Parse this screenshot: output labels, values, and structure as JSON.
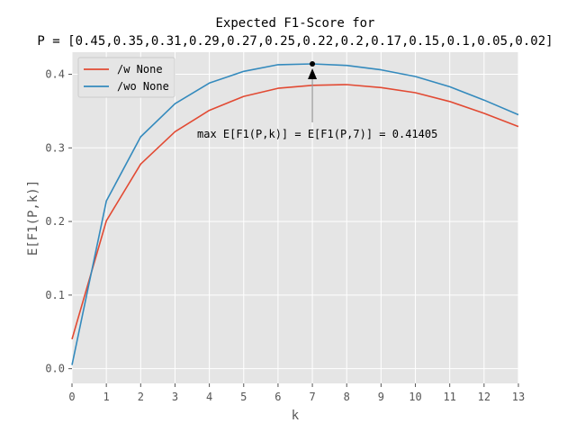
{
  "chart_data": {
    "type": "line",
    "title_lines": [
      "Expected F1-Score for",
      "P = [0.45,0.35,0.31,0.29,0.27,0.25,0.22,0.2,0.17,0.15,0.1,0.05,0.02]"
    ],
    "xlabel": "k",
    "ylabel": "E[F1(P,k)]",
    "x": [
      0,
      1,
      2,
      3,
      4,
      5,
      6,
      7,
      8,
      9,
      10,
      11,
      12,
      13
    ],
    "xlim": [
      0,
      13
    ],
    "ylim": [
      -0.02,
      0.43
    ],
    "xticks": [
      0,
      1,
      2,
      3,
      4,
      5,
      6,
      7,
      8,
      9,
      10,
      11,
      12,
      13
    ],
    "yticks": [
      0.0,
      0.1,
      0.2,
      0.3,
      0.4
    ],
    "ytick_labels": [
      "0.0",
      "0.1",
      "0.2",
      "0.3",
      "0.4"
    ],
    "grid": true,
    "legend_position": "top-left",
    "series": [
      {
        "name": "/w None",
        "color": "#E24A33",
        "values": [
          0.04,
          0.201,
          0.278,
          0.322,
          0.351,
          0.37,
          0.381,
          0.385,
          0.386,
          0.382,
          0.375,
          0.363,
          0.347,
          0.329
        ]
      },
      {
        "name": "/wo None",
        "color": "#348ABD",
        "values": [
          0.005,
          0.228,
          0.315,
          0.36,
          0.388,
          0.404,
          0.413,
          0.41405,
          0.412,
          0.406,
          0.397,
          0.383,
          0.365,
          0.345
        ]
      }
    ],
    "annotation": {
      "text": "max E[F1(P,k)] = E[F1(P,7)] = 0.41405",
      "point_x": 7,
      "point_y": 0.41405,
      "text_x": 7,
      "text_y": 0.32
    }
  }
}
